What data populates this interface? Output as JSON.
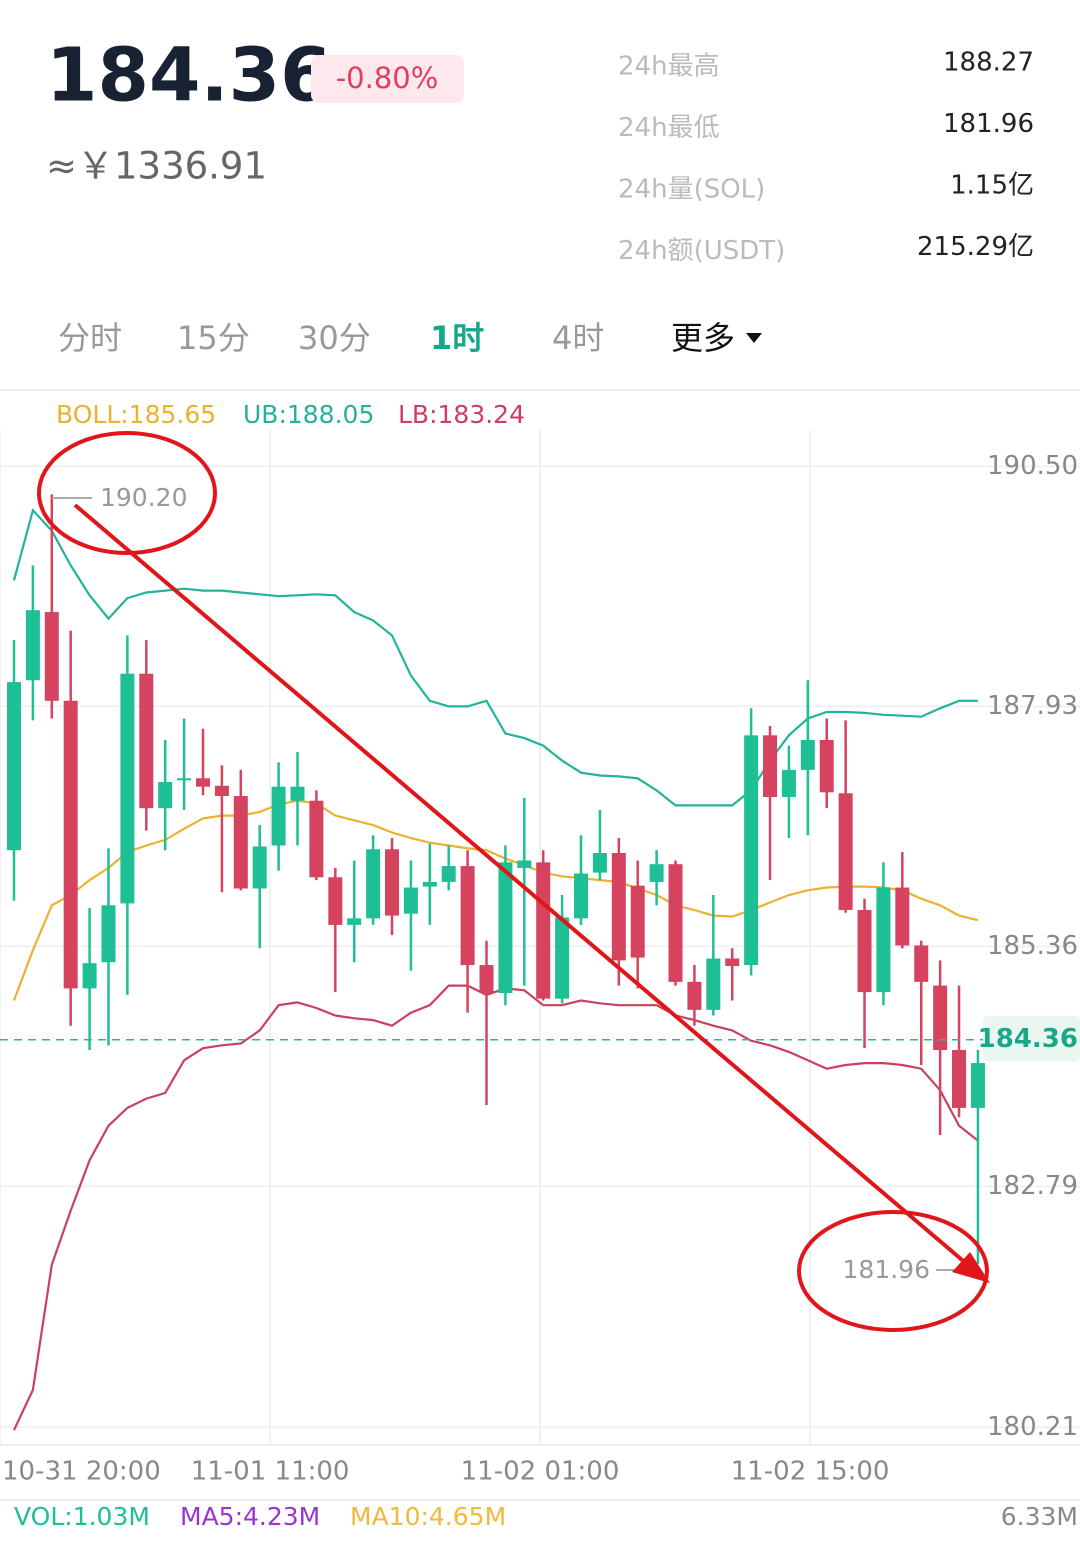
{
  "header": {
    "price": "184.36",
    "change": "-0.80%",
    "cny": "≈￥1336.91"
  },
  "stats": [
    {
      "label": "24h最高",
      "value": "188.27"
    },
    {
      "label": "24h最低",
      "value": "181.96"
    },
    {
      "label": "24h量(SOL)",
      "value": "1.15亿"
    },
    {
      "label": "24h额(USDT)",
      "value": "215.29亿"
    }
  ],
  "tabs": [
    "分时",
    "15分",
    "30分",
    "1时",
    "4时",
    "更多"
  ],
  "active_tab": 3,
  "chart_data": {
    "type": "candlestick",
    "up_color": "#1fbf95",
    "down_color": "#d6435f",
    "series": [
      {
        "name": "BOLL:185.65",
        "color": "#eab22e",
        "values": [
          184.78,
          185.32,
          185.8,
          185.91,
          186.07,
          186.2,
          186.37,
          186.44,
          186.5,
          186.62,
          186.73,
          186.76,
          186.76,
          186.8,
          186.88,
          186.92,
          186.89,
          186.76,
          186.71,
          186.66,
          186.58,
          186.52,
          186.47,
          186.44,
          186.41,
          186.39,
          186.3,
          186.23,
          186.15,
          186.11,
          186.09,
          186.07,
          186.05,
          185.98,
          185.91,
          185.8,
          185.75,
          185.69,
          185.68,
          185.75,
          185.83,
          185.91,
          185.96,
          185.99,
          186.0,
          186.0,
          185.99,
          185.96,
          185.87,
          185.8,
          185.69,
          185.64
        ]
      },
      {
        "name": "UB:188.05",
        "color": "#22b39a",
        "values": [
          189.28,
          190.03,
          189.81,
          189.44,
          189.12,
          188.87,
          189.09,
          189.15,
          189.17,
          189.19,
          189.17,
          189.17,
          189.15,
          189.13,
          189.11,
          189.12,
          189.13,
          189.12,
          188.94,
          188.85,
          188.69,
          188.26,
          187.99,
          187.93,
          187.93,
          187.99,
          187.64,
          187.59,
          187.51,
          187.35,
          187.22,
          187.19,
          187.18,
          187.16,
          187.03,
          186.87,
          186.87,
          186.87,
          186.87,
          187.03,
          187.35,
          187.62,
          187.8,
          187.87,
          187.87,
          187.86,
          187.84,
          187.83,
          187.82,
          187.91,
          187.99,
          187.99
        ]
      },
      {
        "name": "LB:183.24",
        "color": "#c9415e",
        "values": [
          180.18,
          180.61,
          181.95,
          182.53,
          183.07,
          183.44,
          183.63,
          183.73,
          183.79,
          184.14,
          184.27,
          184.3,
          184.32,
          184.46,
          184.73,
          184.76,
          184.7,
          184.62,
          184.59,
          184.57,
          184.51,
          184.65,
          184.73,
          184.94,
          184.94,
          184.84,
          184.91,
          184.89,
          184.73,
          184.73,
          184.78,
          184.75,
          184.73,
          184.73,
          184.73,
          184.62,
          184.57,
          184.51,
          184.46,
          184.35,
          184.3,
          184.23,
          184.14,
          184.05,
          184.09,
          184.11,
          184.11,
          184.09,
          184.05,
          183.82,
          183.44,
          183.28
        ]
      }
    ],
    "candles": {
      "open": [
        186.39,
        188.21,
        188.94,
        187.99,
        184.91,
        185.19,
        185.82,
        188.28,
        186.84,
        187.14,
        187.16,
        187.08,
        186.97,
        185.98,
        186.44,
        186.92,
        186.92,
        186.1,
        185.59,
        185.66,
        186.4,
        185.71,
        186.0,
        186.05,
        186.22,
        185.16,
        184.86,
        186.2,
        186.26,
        184.8,
        185.66,
        186.15,
        186.36,
        186.01,
        186.05,
        186.24,
        184.98,
        184.68,
        185.23,
        185.16,
        187.62,
        186.96,
        187.25,
        187.57,
        187.0,
        185.75,
        184.87,
        185.99,
        185.37,
        184.94,
        184.25,
        183.63
      ],
      "high": [
        188.64,
        189.44,
        190.2,
        188.74,
        185.77,
        186.41,
        188.69,
        188.64,
        187.57,
        187.8,
        187.69,
        187.3,
        187.25,
        186.66,
        187.33,
        187.44,
        187.03,
        186.2,
        186.28,
        186.55,
        186.52,
        186.28,
        186.46,
        186.44,
        186.39,
        185.42,
        186.44,
        186.95,
        186.39,
        185.91,
        186.55,
        186.82,
        186.52,
        186.28,
        186.39,
        186.28,
        185.16,
        185.91,
        185.34,
        187.91,
        187.72,
        187.51,
        188.21,
        187.8,
        187.78,
        185.87,
        186.26,
        186.37,
        185.42,
        185.21,
        184.94,
        184.25
      ],
      "low": [
        185.85,
        187.78,
        187.8,
        184.51,
        184.25,
        184.3,
        184.84,
        186.6,
        186.39,
        186.82,
        186.98,
        185.94,
        185.96,
        185.34,
        186.17,
        186.44,
        186.07,
        184.87,
        185.19,
        185.59,
        185.48,
        185.1,
        185.59,
        185.96,
        184.65,
        183.66,
        184.73,
        184.94,
        184.78,
        184.75,
        185.59,
        186.07,
        184.94,
        184.91,
        185.8,
        184.94,
        184.51,
        184.62,
        184.78,
        185.05,
        186.07,
        186.52,
        186.55,
        186.84,
        185.72,
        184.27,
        184.73,
        185.34,
        184.09,
        183.34,
        183.53,
        181.96
      ],
      "close": [
        188.19,
        188.96,
        187.99,
        184.91,
        185.18,
        185.8,
        188.28,
        186.84,
        187.12,
        187.16,
        187.07,
        186.97,
        185.98,
        186.43,
        187.07,
        187.07,
        186.1,
        185.59,
        185.66,
        186.4,
        185.69,
        185.99,
        186.05,
        186.22,
        185.16,
        184.86,
        186.26,
        186.28,
        184.8,
        185.67,
        186.14,
        186.36,
        185.21,
        185.24,
        186.24,
        184.98,
        184.68,
        185.23,
        185.15,
        187.62,
        186.96,
        187.25,
        187.57,
        187.01,
        185.75,
        184.87,
        185.99,
        185.37,
        184.98,
        184.25,
        183.63,
        184.11
      ]
    },
    "xlim": [
      -0.74,
      56.4
    ],
    "xticks": [
      {
        "value": -0.74,
        "label": "10-31 20:00"
      },
      {
        "value": 13.55,
        "label": "11-01 11:00"
      },
      {
        "value": 27.83,
        "label": "11-02 01:00"
      },
      {
        "value": 42.12,
        "label": "11-02 15:00"
      }
    ],
    "ylim": [
      180.02,
      190.89
    ],
    "yticks": [
      {
        "value": 190.5,
        "label": "190.50"
      },
      {
        "value": 187.93,
        "label": "187.93"
      },
      {
        "value": 185.36,
        "label": "185.36"
      },
      {
        "value": 182.79,
        "label": "182.79"
      },
      {
        "value": 180.21,
        "label": "180.21"
      }
    ],
    "grid": true,
    "last_price": 184.36,
    "max_label": "190.20",
    "min_label": "181.96",
    "volume_legend": [
      {
        "name": "VOL:1.03M",
        "color": "#1fbf95"
      },
      {
        "name": "MA5:4.23M",
        "color": "#9b34d1"
      },
      {
        "name": "MA10:4.65M",
        "color": "#f0b93a"
      }
    ],
    "volume_axis_label": "6.33M"
  }
}
